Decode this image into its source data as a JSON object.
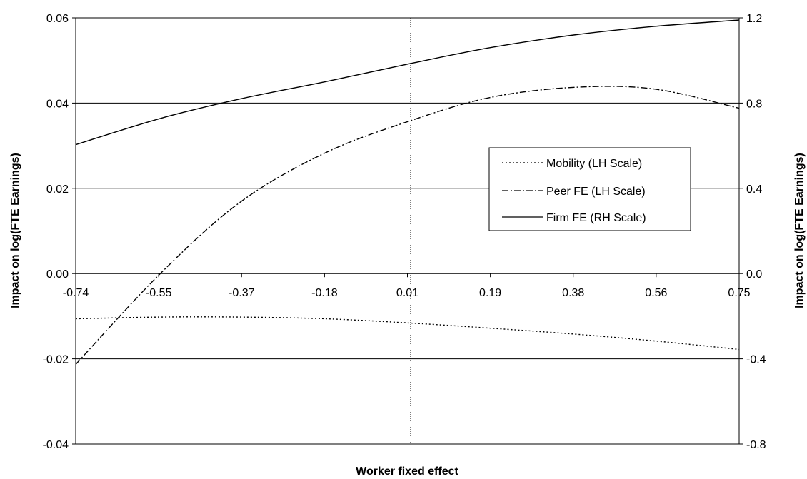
{
  "chart_data": {
    "type": "line",
    "xlabel": "Worker fixed effect",
    "ylabel_left": "Impact on log(FTE Earnings)",
    "ylabel_right": "Impact on log(FTE Earnings)",
    "ylim_left": [
      -0.04,
      0.06
    ],
    "ylim_right": [
      -0.8,
      1.2
    ],
    "xlim": [
      -0.74,
      0.75
    ],
    "x_tick_labels": [
      "-0.74",
      "-0.55",
      "-0.37",
      "-0.18",
      "0.01",
      "0.19",
      "0.38",
      "0.56",
      "0.75"
    ],
    "y_left_tick_labels": [
      "0.06",
      "0.04",
      "0.02",
      "0.00",
      "-0.02",
      "-0.04"
    ],
    "y_right_tick_labels": [
      "1.2",
      "0.8",
      "0.4",
      "0.0",
      "-0.4",
      "-0.8"
    ],
    "grid": "horizontal major gridlines",
    "legend_position": "center-right",
    "series": [
      {
        "name": "Mobility (LH Scale)",
        "axis": "left",
        "line_style": "dotted",
        "x": [
          -0.74,
          -0.55,
          -0.37,
          -0.18,
          0.01,
          0.19,
          0.38,
          0.56,
          0.75
        ],
        "values": [
          -0.0106,
          -0.0102,
          -0.0102,
          -0.0106,
          -0.0116,
          -0.0128,
          -0.0142,
          -0.0158,
          -0.0178
        ]
      },
      {
        "name": "Peer FE (LH Scale)",
        "axis": "left",
        "line_style": "dash-dot",
        "x": [
          -0.74,
          -0.55,
          -0.37,
          -0.18,
          0.01,
          0.19,
          0.38,
          0.56,
          0.75
        ],
        "values": [
          -0.0213,
          0.0,
          0.0168,
          0.0283,
          0.0358,
          0.0413,
          0.0437,
          0.0433,
          0.0388
        ]
      },
      {
        "name": "Firm FE (RH Scale)",
        "axis": "right",
        "line_style": "solid",
        "x": [
          -0.74,
          -0.55,
          -0.37,
          -0.18,
          0.01,
          0.19,
          0.38,
          0.56,
          0.75
        ],
        "values": [
          0.605,
          0.728,
          0.82,
          0.9,
          0.985,
          1.06,
          1.12,
          1.16,
          1.19
        ]
      }
    ]
  }
}
